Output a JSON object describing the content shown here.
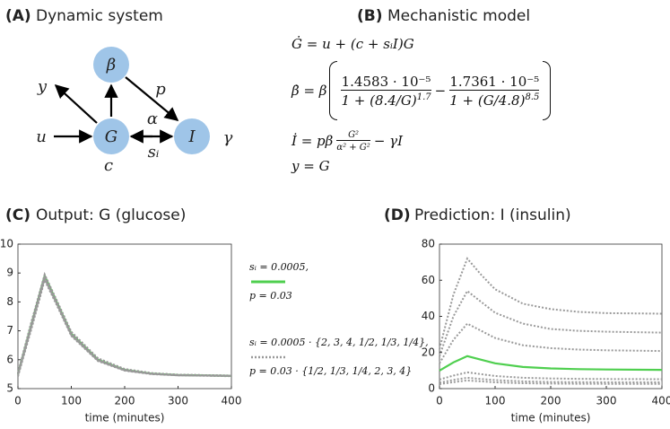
{
  "diagram": {
    "label": "(A)",
    "title": "Dynamic system",
    "nodes": [
      "β",
      "G",
      "I"
    ],
    "edge_labels": [
      "y",
      "u",
      "c",
      "p",
      "α",
      "sᵢ",
      "γ"
    ]
  },
  "model": {
    "label": "(B)",
    "title": "Mechanistic model",
    "eq_G": "Ġ = u + (c + sᵢI)G",
    "eq_beta_lhs": "β̇ = β",
    "beta_num1": "1.4583 · 10⁻⁵",
    "beta_den1": "1 + (8.4/G)",
    "beta_exp1": "1.7",
    "beta_op": "−",
    "beta_num2": "1.7361 · 10⁻⁵",
    "beta_den2": "1 + (G/4.8)",
    "beta_exp2": "8.5",
    "eq_I_lhs": "İ = pβ",
    "I_num": "G²",
    "I_den": "α² + G²",
    "eq_I_rhs": "− γI",
    "eq_y": "y = G"
  },
  "chart_data": [
    {
      "type": "line",
      "label": "(C)",
      "title": "Output: G (glucose)",
      "xlabel": "time (minutes)",
      "x": [
        0,
        25,
        50,
        75,
        100,
        150,
        200,
        250,
        300,
        400
      ],
      "xlim": [
        0,
        400
      ],
      "xticks": [
        0,
        100,
        200,
        300,
        400
      ],
      "ylim": [
        5,
        10
      ],
      "yticks": [
        5,
        6,
        7,
        8,
        9,
        10
      ],
      "series": [
        {
          "name": "sᵢ = 0.0005,\np = 0.03",
          "color": "#4fcf4f",
          "style": "solid",
          "values": [
            5.5,
            7.2,
            8.9,
            7.9,
            6.9,
            6.0,
            5.65,
            5.52,
            5.47,
            5.44
          ]
        },
        {
          "name": "sᵢ = 0.0005 · {2, 3, 4, 1/2, 1/3, 1/4},\np = 0.03 · {1/2, 1/3, 1/4, 2, 3, 4}",
          "color": "#999999",
          "style": "dotted",
          "values": [
            5.45,
            7.1,
            8.8,
            7.85,
            6.85,
            5.97,
            5.63,
            5.51,
            5.46,
            5.44
          ]
        },
        {
          "color": "#999999",
          "style": "dotted",
          "values": [
            5.48,
            7.15,
            8.85,
            7.85,
            6.88,
            5.98,
            5.64,
            5.51,
            5.46,
            5.44
          ]
        },
        {
          "color": "#999999",
          "style": "dotted",
          "values": [
            5.42,
            7.05,
            8.75,
            7.8,
            6.82,
            5.95,
            5.62,
            5.5,
            5.46,
            5.43
          ]
        },
        {
          "color": "#999999",
          "style": "dotted",
          "values": [
            5.52,
            7.25,
            8.92,
            7.92,
            6.92,
            6.02,
            5.66,
            5.53,
            5.48,
            5.45
          ]
        },
        {
          "color": "#999999",
          "style": "dotted",
          "values": [
            5.53,
            7.27,
            8.94,
            7.95,
            6.95,
            6.04,
            5.67,
            5.53,
            5.48,
            5.45
          ]
        },
        {
          "color": "#999999",
          "style": "dotted",
          "values": [
            5.55,
            7.3,
            8.95,
            7.97,
            6.97,
            6.05,
            5.68,
            5.54,
            5.48,
            5.45
          ]
        }
      ],
      "legend": true
    },
    {
      "type": "line",
      "label": "(D)",
      "title": "Prediction: I (insulin)",
      "xlabel": "time (minutes)",
      "x": [
        0,
        25,
        50,
        75,
        100,
        150,
        200,
        250,
        300,
        400
      ],
      "xlim": [
        0,
        400
      ],
      "xticks": [
        0,
        100,
        200,
        300,
        400
      ],
      "ylim": [
        0,
        80
      ],
      "yticks": [
        0,
        20,
        40,
        60,
        80
      ],
      "series": [
        {
          "color": "#999999",
          "style": "dotted",
          "values": [
            22,
            52,
            72,
            63,
            55,
            47,
            44,
            42.5,
            41.8,
            41.5
          ]
        },
        {
          "color": "#999999",
          "style": "dotted",
          "values": [
            18,
            40,
            54,
            48,
            42,
            36,
            33,
            32,
            31.5,
            31
          ]
        },
        {
          "color": "#999999",
          "style": "dotted",
          "values": [
            14,
            27,
            36,
            32,
            28,
            24,
            22.4,
            21.6,
            21.2,
            20.8
          ]
        },
        {
          "color": "#999999",
          "style": "dotted",
          "values": [
            5,
            7.2,
            9,
            8,
            7,
            6,
            5.6,
            5.4,
            5.3,
            5.2
          ]
        },
        {
          "color": "#999999",
          "style": "dotted",
          "values": [
            3.3,
            4.8,
            6,
            5.3,
            4.7,
            4,
            3.7,
            3.6,
            3.5,
            3.5
          ]
        },
        {
          "color": "#999999",
          "style": "dotted",
          "values": [
            2.5,
            3.6,
            4.5,
            4,
            3.5,
            3,
            2.8,
            2.7,
            2.65,
            2.6
          ]
        },
        {
          "color": "#4fcf4f",
          "style": "solid",
          "values": [
            10,
            14.5,
            18,
            16,
            14,
            12,
            11.2,
            10.8,
            10.6,
            10.4
          ]
        }
      ],
      "legend": false
    }
  ]
}
